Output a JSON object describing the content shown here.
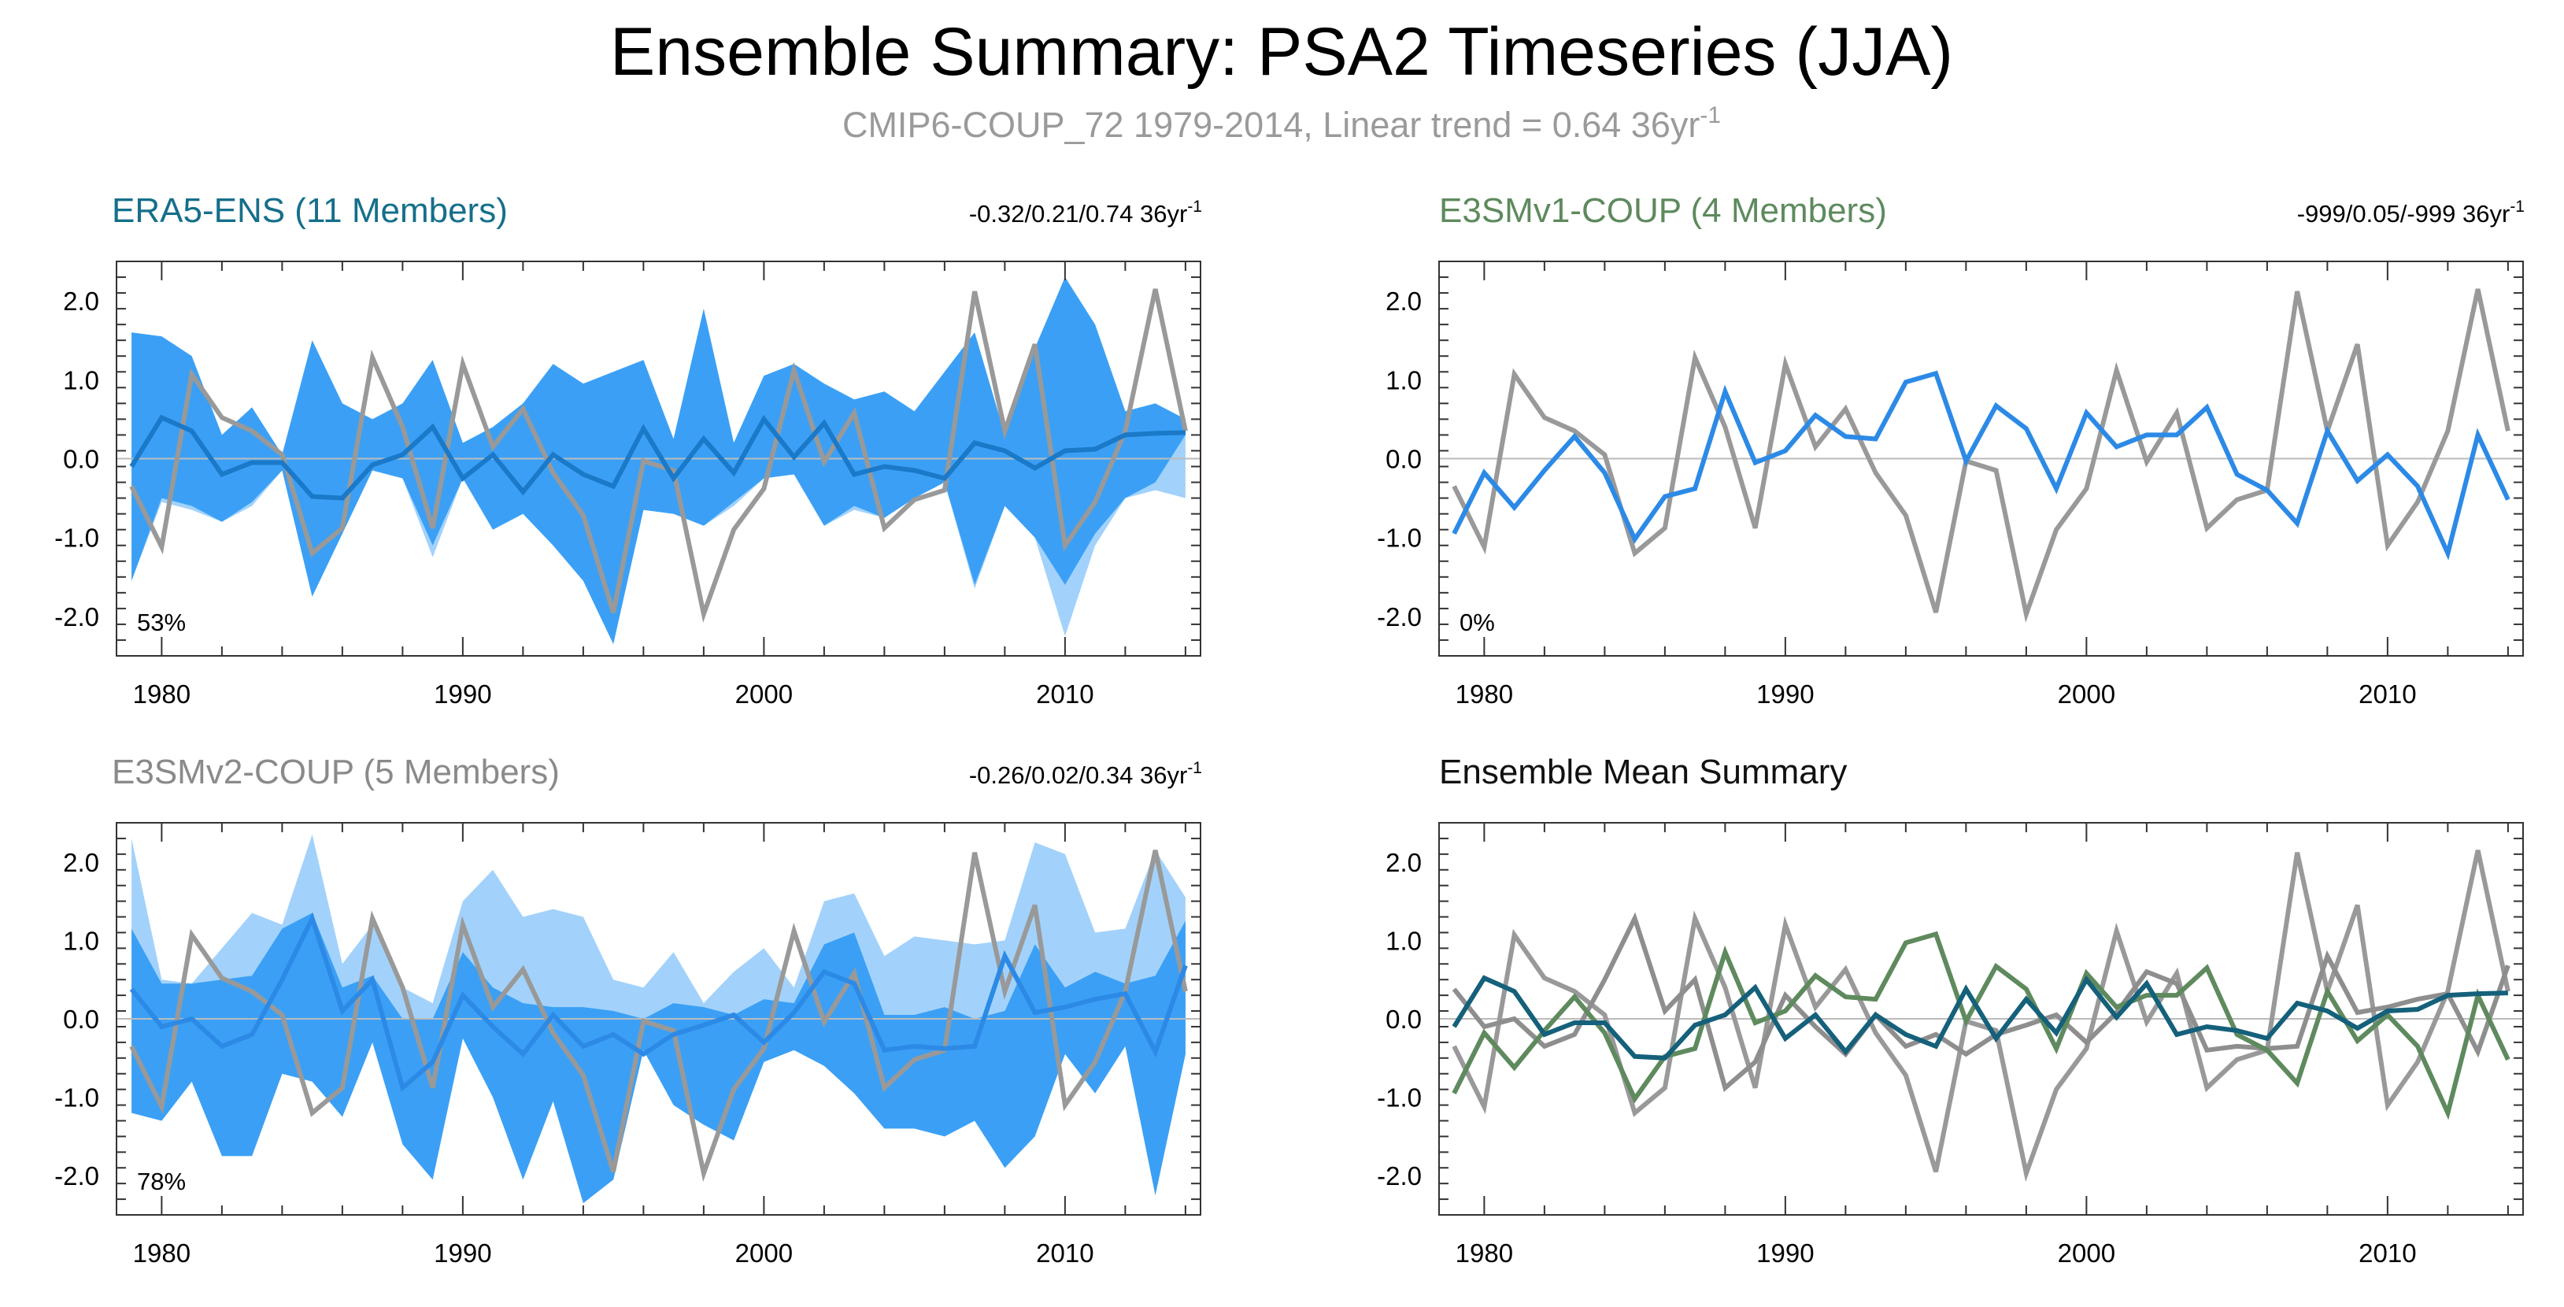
{
  "figure": {
    "title": "Ensemble Summary: PSA2 Timeseries (JJA)",
    "subtitle_main": "CMIP6-COUP_72 1979-2014, Linear trend = 0.64 36yr",
    "subtitle_sup": "-1"
  },
  "colors": {
    "obs_gray": "#999999",
    "zero_line": "#bbbbbb",
    "axis": "#333333",
    "band_dark": "#3ba0f5",
    "band_light": "#a2d2fb",
    "model_line": "#2c8ae6",
    "era5_line": "#1a79c8",
    "era5_title": "#156f8a",
    "v1_title": "#5e8a5e",
    "v2_title": "#8a8a8a",
    "mean_title": "#111111",
    "v1_green": "#5e8a5e",
    "v2_gray": "#8e8e8e",
    "era_teal": "#15607a"
  },
  "chart_data": [
    {
      "id": "era5",
      "type": "line",
      "title": "ERA5-ENS (11 Members)",
      "stats": "-0.32/0.21/0.74 36yr",
      "stats_sup": "-1",
      "pct": "53%",
      "x_start": 1979,
      "xlim": [
        1978.5,
        2014.5
      ],
      "ylim": [
        -2.5,
        2.5
      ],
      "xticks": [
        1980,
        1990,
        2000,
        2010
      ],
      "xtick_labels": [
        "1980",
        "1990",
        "2000",
        "2010"
      ],
      "yticks": [
        2.0,
        1.0,
        0.0,
        -1.0,
        -2.0
      ],
      "ytick_labels": [
        "2.0",
        "1.0",
        "0.0",
        "-1.0",
        "-2.0"
      ],
      "obs": [
        -0.35,
        -1.12,
        1.07,
        0.52,
        0.35,
        0.05,
        -1.2,
        -0.88,
        1.28,
        0.4,
        -0.88,
        1.2,
        0.15,
        0.63,
        -0.18,
        -0.72,
        -1.95,
        -0.03,
        -0.15,
        -1.97,
        -0.9,
        -0.38,
        1.12,
        -0.04,
        0.58,
        -0.88,
        -0.52,
        -0.4,
        2.12,
        0.35,
        1.45,
        -1.1,
        -0.55,
        0.35,
        2.15,
        0.35
      ],
      "band_light_upper": [
        1.6,
        1.55,
        1.3,
        0.3,
        0.65,
        0.05,
        1.5,
        0.7,
        0.5,
        0.7,
        1.25,
        0.2,
        0.4,
        0.7,
        1.2,
        0.95,
        1.1,
        1.25,
        0.25,
        1.9,
        0.2,
        1.05,
        1.2,
        0.95,
        0.75,
        0.85,
        0.6,
        1.1,
        1.6,
        0.3,
        1.4,
        2.3,
        1.7,
        0.6,
        0.7,
        0.5
      ],
      "band_light_lower": [
        -1.55,
        -0.55,
        -0.65,
        -0.8,
        -0.6,
        -0.15,
        -1.75,
        -0.95,
        -0.15,
        -0.25,
        -1.25,
        -0.25,
        -0.9,
        -0.7,
        -1.1,
        -1.55,
        -2.35,
        -0.65,
        -0.7,
        -0.85,
        -0.6,
        -0.25,
        -0.2,
        -0.85,
        -0.65,
        -0.75,
        -0.5,
        -0.3,
        -1.65,
        -0.6,
        -1.0,
        -2.25,
        -1.1,
        -0.5,
        -0.4,
        -0.5
      ],
      "band_dark_upper": [
        1.6,
        1.55,
        1.3,
        0.3,
        0.65,
        0.05,
        1.5,
        0.7,
        0.5,
        0.7,
        1.25,
        0.2,
        0.4,
        0.7,
        1.2,
        0.95,
        1.1,
        1.25,
        0.25,
        1.9,
        0.2,
        1.05,
        1.2,
        0.95,
        0.75,
        0.85,
        0.6,
        1.1,
        1.6,
        0.3,
        1.4,
        2.3,
        1.7,
        0.6,
        0.7,
        0.5
      ],
      "band_dark_lower": [
        -1.55,
        -0.5,
        -0.6,
        -0.8,
        -0.55,
        -0.15,
        -1.75,
        -0.95,
        -0.15,
        -0.25,
        -1.1,
        -0.25,
        -0.9,
        -0.7,
        -1.1,
        -1.55,
        -2.35,
        -0.65,
        -0.7,
        -0.85,
        -0.55,
        -0.25,
        -0.2,
        -0.85,
        -0.6,
        -0.75,
        -0.5,
        -0.3,
        -1.6,
        -0.6,
        -1.0,
        -1.6,
        -0.95,
        -0.5,
        -0.3,
        0.3
      ],
      "mean": [
        -0.1,
        0.52,
        0.35,
        -0.2,
        -0.05,
        -0.05,
        -0.48,
        -0.5,
        -0.08,
        0.05,
        0.4,
        -0.25,
        0.05,
        -0.42,
        0.05,
        -0.2,
        -0.35,
        0.38,
        -0.25,
        0.25,
        -0.18,
        0.5,
        0.02,
        0.45,
        -0.2,
        -0.1,
        -0.15,
        -0.25,
        0.2,
        0.1,
        -0.12,
        0.1,
        0.12,
        0.3,
        0.32,
        0.33
      ],
      "mean_color_key": "era5_line"
    },
    {
      "id": "e3smv1",
      "type": "line",
      "title": "E3SMv1-COUP (4 Members)",
      "stats": "-999/0.05/-999 36yr",
      "stats_sup": "-1",
      "pct": "0%",
      "x_start": 1979,
      "xlim": [
        1978.5,
        2014.5
      ],
      "ylim": [
        -2.5,
        2.5
      ],
      "xticks": [
        1980,
        1990,
        2000,
        2010
      ],
      "xtick_labels": [
        "1980",
        "1990",
        "2000",
        "2010"
      ],
      "yticks": [
        2.0,
        1.0,
        0.0,
        -1.0,
        -2.0
      ],
      "ytick_labels": [
        "2.0",
        "1.0",
        "0.0",
        "-1.0",
        "-2.0"
      ],
      "obs": [
        -0.35,
        -1.12,
        1.07,
        0.52,
        0.35,
        0.05,
        -1.2,
        -0.88,
        1.28,
        0.4,
        -0.88,
        1.2,
        0.15,
        0.63,
        -0.18,
        -0.72,
        -1.95,
        -0.03,
        -0.15,
        -1.97,
        -0.9,
        -0.38,
        1.12,
        -0.04,
        0.58,
        -0.88,
        -0.52,
        -0.4,
        2.12,
        0.35,
        1.45,
        -1.1,
        -0.55,
        0.35,
        2.15,
        0.35
      ],
      "mean": [
        -0.95,
        -0.18,
        -0.62,
        -0.15,
        0.28,
        -0.18,
        -1.02,
        -0.48,
        -0.38,
        0.85,
        -0.05,
        0.1,
        0.55,
        0.28,
        0.25,
        0.97,
        1.08,
        -0.03,
        0.67,
        0.38,
        -0.38,
        0.58,
        0.15,
        0.3,
        0.3,
        0.65,
        -0.2,
        -0.4,
        -0.82,
        0.35,
        -0.28,
        0.05,
        -0.35,
        -1.2,
        0.3,
        -0.52
      ],
      "mean_color_key": "model_line"
    },
    {
      "id": "e3smv2",
      "type": "line",
      "title": "E3SMv2-COUP (5 Members)",
      "stats": "-0.26/0.02/0.34 36yr",
      "stats_sup": "-1",
      "pct": "78%",
      "x_start": 1979,
      "xlim": [
        1978.5,
        2014.5
      ],
      "ylim": [
        -2.5,
        2.5
      ],
      "xticks": [
        1980,
        1990,
        2000,
        2010
      ],
      "xtick_labels": [
        "1980",
        "1990",
        "2000",
        "2010"
      ],
      "yticks": [
        2.0,
        1.0,
        0.0,
        -1.0,
        -2.0
      ],
      "ytick_labels": [
        "2.0",
        "1.0",
        "0.0",
        "-1.0",
        "-2.0"
      ],
      "obs": [
        -0.35,
        -1.12,
        1.07,
        0.52,
        0.35,
        0.05,
        -1.2,
        -0.88,
        1.28,
        0.4,
        -0.88,
        1.2,
        0.15,
        0.63,
        -0.18,
        -0.72,
        -1.95,
        -0.03,
        -0.15,
        -1.97,
        -0.9,
        -0.38,
        1.12,
        -0.04,
        0.58,
        -0.88,
        -0.52,
        -0.4,
        2.12,
        0.35,
        1.45,
        -1.1,
        -0.55,
        0.35,
        2.15,
        0.35
      ],
      "band_light_upper": [
        2.3,
        0.5,
        0.45,
        0.9,
        1.35,
        1.2,
        2.35,
        0.7,
        1.2,
        0.4,
        0.2,
        1.5,
        1.9,
        1.3,
        1.4,
        1.3,
        0.5,
        0.4,
        0.85,
        0.2,
        0.6,
        0.9,
        0.4,
        1.5,
        1.6,
        0.8,
        1.05,
        1.0,
        0.95,
        1.0,
        2.25,
        2.1,
        1.1,
        1.15,
        2.15,
        1.55
      ],
      "band_light_lower": [
        -1.2,
        -1.3,
        -0.8,
        -1.75,
        -1.75,
        -0.7,
        -0.8,
        -1.25,
        -0.3,
        -1.6,
        -2.05,
        -0.25,
        -1.0,
        -2.05,
        -1.05,
        -2.35,
        -2.05,
        -0.4,
        -1.1,
        -1.35,
        -1.55,
        -0.55,
        -0.4,
        -0.6,
        -0.95,
        -1.4,
        -1.4,
        -1.5,
        -1.3,
        -1.9,
        -1.5,
        -0.45,
        -0.95,
        -0.35,
        -2.25,
        -0.45
      ],
      "band_dark_upper": [
        1.15,
        0.45,
        0.45,
        0.5,
        0.55,
        1.15,
        1.35,
        0.4,
        0.55,
        0.0,
        0.0,
        0.85,
        0.4,
        0.2,
        0.15,
        0.15,
        0.1,
        0.0,
        0.2,
        0.15,
        0.05,
        0.25,
        0.2,
        0.95,
        1.1,
        0.05,
        0.05,
        0.15,
        0.0,
        0.1,
        0.95,
        0.4,
        0.6,
        0.45,
        0.55,
        1.25
      ],
      "band_dark_lower": [
        -1.2,
        -1.3,
        -0.8,
        -1.75,
        -1.75,
        -0.7,
        -0.8,
        -1.25,
        -0.3,
        -1.6,
        -2.05,
        -0.25,
        -1.0,
        -2.05,
        -1.05,
        -2.35,
        -2.05,
        -0.4,
        -1.1,
        -1.35,
        -1.55,
        -0.55,
        -0.4,
        -0.6,
        -0.95,
        -1.4,
        -1.4,
        -1.5,
        -1.3,
        -1.9,
        -1.5,
        -0.45,
        -0.95,
        -0.35,
        -2.25,
        -0.45
      ],
      "mean": [
        0.38,
        -0.1,
        0.0,
        -0.35,
        -0.2,
        0.5,
        1.28,
        0.1,
        0.5,
        -0.88,
        -0.55,
        0.3,
        -0.1,
        -0.45,
        0.05,
        -0.35,
        -0.2,
        -0.45,
        -0.2,
        -0.08,
        0.05,
        -0.3,
        0.08,
        0.6,
        0.45,
        -0.4,
        -0.35,
        -0.38,
        -0.35,
        0.8,
        0.08,
        0.15,
        0.25,
        0.32,
        -0.42,
        0.68
      ],
      "mean_color_key": "model_line"
    },
    {
      "id": "mean_summary",
      "type": "line",
      "title": "Ensemble Mean Summary",
      "x_start": 1979,
      "xlim": [
        1978.5,
        2014.5
      ],
      "ylim": [
        -2.5,
        2.5
      ],
      "xticks": [
        1980,
        1990,
        2000,
        2010
      ],
      "xtick_labels": [
        "1980",
        "1990",
        "2000",
        "2010"
      ],
      "yticks": [
        2.0,
        1.0,
        0.0,
        -1.0,
        -2.0
      ],
      "ytick_labels": [
        "2.0",
        "1.0",
        "0.0",
        "-1.0",
        "-2.0"
      ],
      "obs": [
        -0.35,
        -1.12,
        1.07,
        0.52,
        0.35,
        0.05,
        -1.2,
        -0.88,
        1.28,
        0.4,
        -0.88,
        1.2,
        0.15,
        0.63,
        -0.18,
        -0.72,
        -1.95,
        -0.03,
        -0.15,
        -1.97,
        -0.9,
        -0.38,
        1.12,
        -0.04,
        0.58,
        -0.88,
        -0.52,
        -0.4,
        2.12,
        0.35,
        1.45,
        -1.1,
        -0.55,
        0.35,
        2.15,
        0.35
      ],
      "series": [
        {
          "name": "E3SMv2-COUP",
          "color_key": "v2_gray",
          "values": [
            0.38,
            -0.1,
            0.0,
            -0.35,
            -0.2,
            0.5,
            1.28,
            0.1,
            0.5,
            -0.88,
            -0.55,
            0.3,
            -0.1,
            -0.45,
            0.05,
            -0.35,
            -0.2,
            -0.45,
            -0.2,
            -0.08,
            0.05,
            -0.3,
            0.08,
            0.6,
            0.45,
            -0.4,
            -0.35,
            -0.38,
            -0.35,
            0.8,
            0.08,
            0.15,
            0.25,
            0.32,
            -0.42,
            0.68
          ]
        },
        {
          "name": "E3SMv1-COUP",
          "color_key": "v1_green",
          "values": [
            -0.95,
            -0.18,
            -0.62,
            -0.15,
            0.28,
            -0.18,
            -1.02,
            -0.48,
            -0.38,
            0.85,
            -0.05,
            0.1,
            0.55,
            0.28,
            0.25,
            0.97,
            1.08,
            -0.03,
            0.67,
            0.38,
            -0.38,
            0.58,
            0.15,
            0.3,
            0.3,
            0.65,
            -0.2,
            -0.4,
            -0.82,
            0.35,
            -0.28,
            0.05,
            -0.35,
            -1.2,
            0.3,
            -0.52
          ]
        },
        {
          "name": "ERA5-ENS",
          "color_key": "era_teal",
          "values": [
            -0.1,
            0.52,
            0.35,
            -0.2,
            -0.05,
            -0.05,
            -0.48,
            -0.5,
            -0.08,
            0.05,
            0.4,
            -0.25,
            0.05,
            -0.42,
            0.05,
            -0.2,
            -0.35,
            0.38,
            -0.25,
            0.25,
            -0.18,
            0.5,
            0.02,
            0.45,
            -0.2,
            -0.1,
            -0.15,
            -0.25,
            0.2,
            0.1,
            -0.12,
            0.1,
            0.12,
            0.3,
            0.32,
            0.33
          ]
        }
      ]
    }
  ]
}
